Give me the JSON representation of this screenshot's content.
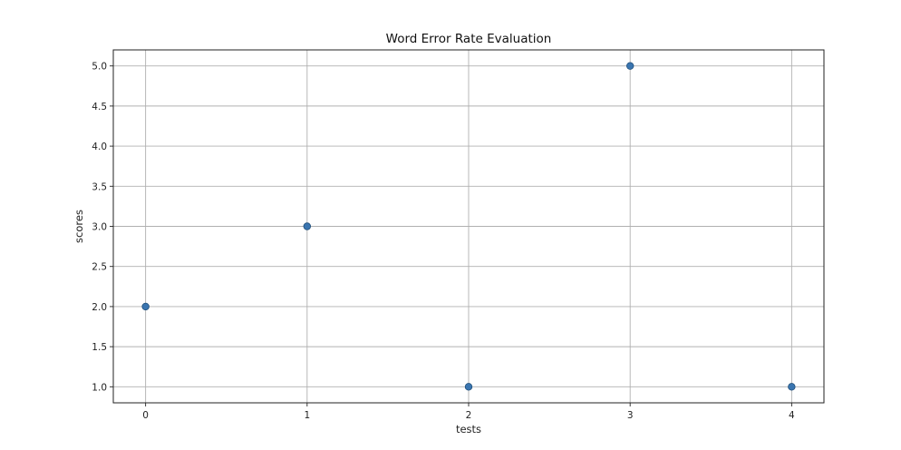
{
  "chart_data": {
    "type": "scatter",
    "title": "Word Error Rate Evaluation",
    "xlabel": "tests",
    "ylabel": "scores",
    "x": [
      0,
      1,
      2,
      3,
      4
    ],
    "y": [
      2.0,
      3.0,
      1.0,
      5.0,
      1.0
    ],
    "xlim": [
      -0.2,
      4.2
    ],
    "ylim": [
      0.8,
      5.2
    ],
    "x_ticks": [
      0,
      1,
      2,
      3,
      4
    ],
    "x_tick_labels": [
      "0",
      "1",
      "2",
      "3",
      "4"
    ],
    "y_ticks": [
      1.0,
      1.5,
      2.0,
      2.5,
      3.0,
      3.5,
      4.0,
      4.5,
      5.0
    ],
    "y_tick_labels": [
      "1.0",
      "1.5",
      "2.0",
      "2.5",
      "3.0",
      "3.5",
      "4.0",
      "4.5",
      "5.0"
    ],
    "grid": true,
    "point_color": "#3a75b0"
  }
}
